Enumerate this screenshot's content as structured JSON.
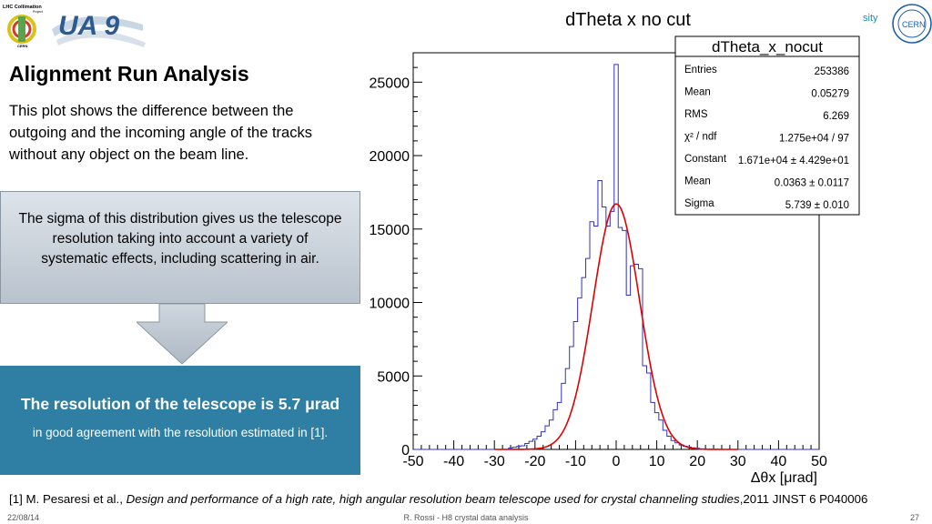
{
  "logos": {
    "lhc_line1": "LHC Collimation",
    "lhc_line2": "Project",
    "lhc_line3": "CERN",
    "ua9": "UA 9",
    "univ_fragment": "sity",
    "cern": "CERN"
  },
  "slide": {
    "heading": "Alignment Run Analysis",
    "description": "This plot shows the difference between the outgoing and the incoming angle of the tracks without any object on the beam line.",
    "callout": "The sigma of this distribution gives us the telescope resolution taking into account a variety of systematic effects, including scattering in air.",
    "result_title": "The resolution of the telescope is 5.7 μrad",
    "result_sub": "in good agreement with the resolution estimated in [1]."
  },
  "reference": {
    "prefix": "[1] M. Pesaresi et al., ",
    "title": "Design and performance of a high rate, high angular resolution beam telescope used for crystal channeling studies",
    "suffix": ",2011 JINST 6 P040006"
  },
  "footer": {
    "date": "22/08/14",
    "author": "R. Rossi - H8 crystal data analysis",
    "page": "27"
  },
  "stats": {
    "title": "dTheta_x_nocut",
    "rows": [
      {
        "label": "Entries",
        "value": "253386"
      },
      {
        "label": "Mean",
        "value": "0.05279"
      },
      {
        "label": "RMS",
        "value": "6.269"
      },
      {
        "label": "χ² / ndf",
        "value": "1.275e+04 / 97"
      },
      {
        "label": "Constant",
        "value": "1.671e+04 ± 4.429e+01"
      },
      {
        "label": "Mean",
        "value": "0.0363 ± 0.0117"
      },
      {
        "label": "Sigma",
        "value": "5.739 ± 0.010"
      }
    ]
  },
  "colors": {
    "fit": "#e00000",
    "histogram": "#3030c8",
    "accent": "#2f7ea3"
  },
  "chart_data": {
    "type": "bar",
    "title": "dTheta x no cut",
    "xlabel": "Δθx [μrad]",
    "ylabel": "",
    "xlim": [
      -50,
      50
    ],
    "ylim": [
      0,
      27000
    ],
    "xticks": [
      -50,
      -40,
      -30,
      -20,
      -10,
      0,
      10,
      20,
      30,
      40,
      50
    ],
    "yticks": [
      0,
      5000,
      10000,
      15000,
      20000,
      25000
    ],
    "bin_width": 1,
    "bins": [
      {
        "x": -26,
        "y": 100
      },
      {
        "x": -25,
        "y": 150
      },
      {
        "x": -24,
        "y": 200
      },
      {
        "x": -23,
        "y": 250
      },
      {
        "x": -22,
        "y": 400
      },
      {
        "x": -21,
        "y": 550
      },
      {
        "x": -20,
        "y": 700
      },
      {
        "x": -19,
        "y": 900
      },
      {
        "x": -18,
        "y": 1200
      },
      {
        "x": -17,
        "y": 1600
      },
      {
        "x": -16,
        "y": 2000
      },
      {
        "x": -15,
        "y": 2700
      },
      {
        "x": -14,
        "y": 3200
      },
      {
        "x": -13,
        "y": 4500
      },
      {
        "x": -12,
        "y": 5500
      },
      {
        "x": -11,
        "y": 7000
      },
      {
        "x": -10,
        "y": 8700
      },
      {
        "x": -9,
        "y": 10300
      },
      {
        "x": -8,
        "y": 11700
      },
      {
        "x": -7,
        "y": 13000
      },
      {
        "x": -6,
        "y": 15500
      },
      {
        "x": -5,
        "y": 15200
      },
      {
        "x": -4,
        "y": 18300
      },
      {
        "x": -3,
        "y": 16500
      },
      {
        "x": -2,
        "y": 15200
      },
      {
        "x": -1,
        "y": 16200
      },
      {
        "x": 0,
        "y": 26200
      },
      {
        "x": 1,
        "y": 15100
      },
      {
        "x": 2,
        "y": 14900
      },
      {
        "x": 3,
        "y": 10500
      },
      {
        "x": 4,
        "y": 12500
      },
      {
        "x": 5,
        "y": 12600
      },
      {
        "x": 6,
        "y": 12300
      },
      {
        "x": 7,
        "y": 5700
      },
      {
        "x": 8,
        "y": 5200
      },
      {
        "x": 9,
        "y": 3200
      },
      {
        "x": 10,
        "y": 2500
      },
      {
        "x": 11,
        "y": 2000
      },
      {
        "x": 12,
        "y": 1300
      },
      {
        "x": 13,
        "y": 900
      },
      {
        "x": 14,
        "y": 600
      },
      {
        "x": 15,
        "y": 450
      },
      {
        "x": 16,
        "y": 300
      },
      {
        "x": 17,
        "y": 220
      },
      {
        "x": 18,
        "y": 160
      },
      {
        "x": 19,
        "y": 110
      },
      {
        "x": 20,
        "y": 80
      }
    ],
    "fit": {
      "type": "gaussian",
      "constant": 16710,
      "mean": 0.0363,
      "sigma": 5.739
    }
  }
}
